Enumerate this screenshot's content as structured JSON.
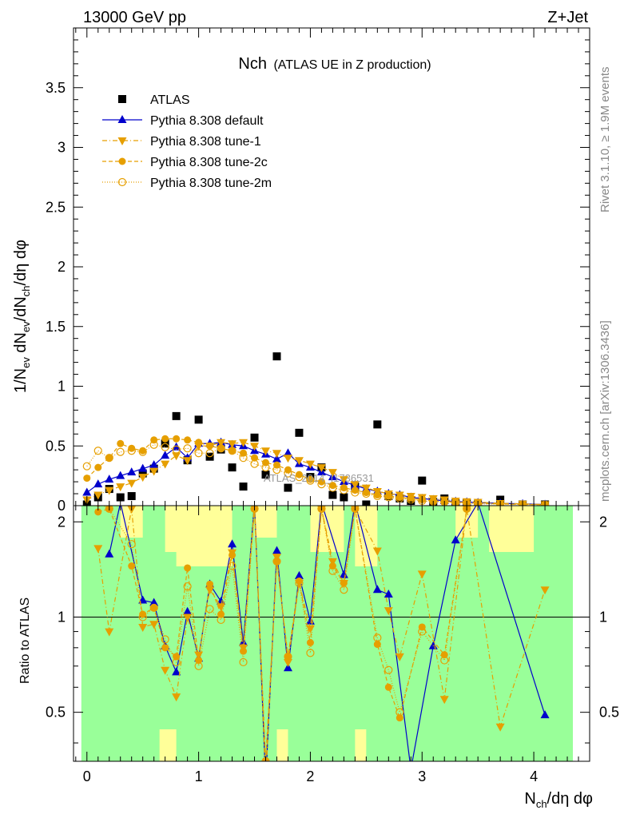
{
  "header": {
    "left": "13000 GeV pp",
    "right": "Z+Jet"
  },
  "title": {
    "main": "Nch",
    "sub": "(ATLAS UE in Z production)"
  },
  "side_labels": {
    "rivet": "Rivet 3.1.10, ≥ 1.9M events",
    "mcplots": "mcplots.cern.ch [arXiv:1306.3436]"
  },
  "watermark": "ATLAS_2014_I1736531",
  "colors": {
    "atlas": "#000000",
    "default": "#0000cc",
    "tune": "#e69f00",
    "band_inner": "#99ff99",
    "band_outer": "#ffff99"
  },
  "chart_data": [
    {
      "type": "scatter",
      "panel": "main",
      "xlabel": "N_ch/dη dφ",
      "ylabel": "1/N_ev dN_ev/dN_ch/dη dφ",
      "xlim": [
        -0.12,
        4.5
      ],
      "ylim": [
        0,
        4.0
      ],
      "yticks": [
        0,
        0.5,
        1,
        1.5,
        2,
        2.5,
        3,
        3.5
      ],
      "ytick_labels": [
        "0",
        "0.5",
        "1",
        "1.5",
        "2",
        "2.5",
        "3",
        "3.5"
      ],
      "xticks": [
        0,
        1,
        2,
        3,
        4
      ],
      "legend_position": "top-left",
      "series": [
        {
          "name": "ATLAS",
          "marker": "square",
          "x": [
            0,
            0.1,
            0.2,
            0.3,
            0.4,
            0.5,
            0.6,
            0.7,
            0.8,
            0.9,
            1.0,
            1.1,
            1.2,
            1.3,
            1.4,
            1.5,
            1.6,
            1.7,
            1.8,
            1.9,
            2.0,
            2.1,
            2.2,
            2.3,
            2.4,
            2.5,
            2.6,
            2.7,
            2.8,
            2.9,
            3.0,
            3.1,
            3.2,
            3.3,
            3.4,
            3.5,
            3.7,
            3.9,
            4.1
          ],
          "y": [
            0.01,
            0.07,
            0.14,
            0.07,
            0.08,
            0.27,
            0.31,
            0.52,
            0.75,
            0.38,
            0.72,
            0.41,
            0.47,
            0.32,
            0.16,
            0.57,
            0.26,
            1.25,
            0.15,
            0.61,
            0.24,
            0.32,
            0.09,
            0.07,
            0.16,
            0.01,
            0.68,
            0.08,
            0.06,
            0.04,
            0.21,
            0.03,
            0.06,
            0.02,
            0.02,
            0.01,
            0.05,
            0.01,
            0.01
          ]
        },
        {
          "name": "Pythia 8.308 default",
          "marker": "triangle-up",
          "line": "solid",
          "x": [
            0,
            0.1,
            0.2,
            0.3,
            0.4,
            0.5,
            0.6,
            0.7,
            0.8,
            0.9,
            1.0,
            1.1,
            1.2,
            1.3,
            1.4,
            1.5,
            1.6,
            1.7,
            1.8,
            1.9,
            2.0,
            2.1,
            2.2,
            2.3,
            2.4,
            2.5,
            2.6,
            2.7,
            2.8,
            2.9,
            3.0,
            3.1,
            3.2,
            3.3,
            3.4,
            3.5,
            3.7,
            3.9,
            4.1
          ],
          "y": [
            0.11,
            0.18,
            0.22,
            0.25,
            0.28,
            0.31,
            0.34,
            0.42,
            0.49,
            0.4,
            0.52,
            0.52,
            0.53,
            0.51,
            0.5,
            0.46,
            0.43,
            0.39,
            0.44,
            0.35,
            0.32,
            0.28,
            0.24,
            0.2,
            0.17,
            0.14,
            0.12,
            0.1,
            0.09,
            0.07,
            0.06,
            0.05,
            0.04,
            0.035,
            0.03,
            0.025,
            0.02,
            0.015,
            0.01
          ]
        },
        {
          "name": "Pythia 8.308 tune-1",
          "marker": "triangle-down",
          "line": "dash-dot",
          "x": [
            0,
            0.1,
            0.2,
            0.3,
            0.4,
            0.5,
            0.6,
            0.7,
            0.8,
            0.9,
            1.0,
            1.1,
            1.2,
            1.3,
            1.4,
            1.5,
            1.6,
            1.7,
            1.8,
            1.9,
            2.0,
            2.1,
            2.2,
            2.3,
            2.4,
            2.5,
            2.6,
            2.7,
            2.8,
            2.9,
            3.0,
            3.1,
            3.2,
            3.3,
            3.4,
            3.5,
            3.7,
            3.9,
            4.1
          ],
          "y": [
            0.05,
            0.09,
            0.13,
            0.16,
            0.19,
            0.24,
            0.29,
            0.35,
            0.42,
            0.38,
            0.5,
            0.5,
            0.53,
            0.52,
            0.53,
            0.5,
            0.46,
            0.44,
            0.4,
            0.38,
            0.35,
            0.32,
            0.28,
            0.22,
            0.18,
            0.15,
            0.12,
            0.1,
            0.09,
            0.08,
            0.07,
            0.06,
            0.05,
            0.04,
            0.035,
            0.03,
            0.02,
            0.015,
            0.01
          ]
        },
        {
          "name": "Pythia 8.308 tune-2c",
          "marker": "circle",
          "line": "dashed",
          "x": [
            0,
            0.1,
            0.2,
            0.3,
            0.4,
            0.5,
            0.6,
            0.7,
            0.8,
            0.9,
            1.0,
            1.1,
            1.2,
            1.3,
            1.4,
            1.5,
            1.6,
            1.7,
            1.8,
            1.9,
            2.0,
            2.1,
            2.2,
            2.3,
            2.4,
            2.5,
            2.6,
            2.7,
            2.8,
            2.9,
            3.0,
            3.1,
            3.2,
            3.3,
            3.4,
            3.5,
            3.7,
            3.9,
            4.1
          ],
          "y": [
            0.23,
            0.32,
            0.4,
            0.52,
            0.48,
            0.46,
            0.55,
            0.56,
            0.56,
            0.55,
            0.53,
            0.5,
            0.48,
            0.46,
            0.44,
            0.4,
            0.36,
            0.34,
            0.3,
            0.26,
            0.22,
            0.2,
            0.17,
            0.15,
            0.13,
            0.11,
            0.09,
            0.08,
            0.07,
            0.06,
            0.05,
            0.04,
            0.035,
            0.03,
            0.025,
            0.02,
            0.015,
            0.01,
            0.008
          ]
        },
        {
          "name": "Pythia 8.308 tune-2m",
          "marker": "circle-open",
          "line": "dotted",
          "x": [
            0,
            0.1,
            0.2,
            0.3,
            0.4,
            0.5,
            0.6,
            0.7,
            0.8,
            0.9,
            1.0,
            1.1,
            1.2,
            1.3,
            1.4,
            1.5,
            1.6,
            1.7,
            1.8,
            1.9,
            2.0,
            2.1,
            2.2,
            2.3,
            2.4,
            2.5,
            2.6,
            2.7,
            2.8,
            2.9,
            3.0,
            3.1,
            3.2,
            3.3,
            3.4,
            3.5,
            3.7,
            3.9,
            4.1
          ],
          "y": [
            0.33,
            0.46,
            0.4,
            0.45,
            0.46,
            0.45,
            0.51,
            0.49,
            0.47,
            0.48,
            0.44,
            0.44,
            0.48,
            0.46,
            0.4,
            0.35,
            0.32,
            0.3,
            0.27,
            0.24,
            0.21,
            0.18,
            0.15,
            0.13,
            0.11,
            0.1,
            0.08,
            0.07,
            0.06,
            0.05,
            0.04,
            0.035,
            0.03,
            0.025,
            0.02,
            0.015,
            0.012,
            0.01,
            0.008
          ]
        }
      ]
    },
    {
      "type": "scatter",
      "panel": "ratio",
      "xlabel": "N_ch/dη dφ",
      "ylabel": "Ratio to ATLAS",
      "xlim": [
        -0.12,
        4.5
      ],
      "ylim": [
        0.35,
        2.25
      ],
      "yticks": [
        0.5,
        1,
        2
      ],
      "ytick_labels": [
        "0.5",
        "1",
        "2"
      ],
      "xticks": [
        0,
        1,
        2,
        3,
        4
      ],
      "xtick_labels": [
        "0",
        "1",
        "2",
        "3",
        "4"
      ],
      "reference_line": 1,
      "series": [
        {
          "name": "Pythia 8.308 default",
          "marker": "triangle-up",
          "line": "solid",
          "x": [
            0.2,
            0.3,
            0.5,
            0.6,
            0.7,
            0.8,
            0.9,
            1.0,
            1.1,
            1.2,
            1.3,
            1.4,
            1.5,
            1.6,
            1.7,
            1.8,
            1.9,
            2.0,
            2.1,
            2.3,
            2.4,
            2.6,
            2.7,
            2.9,
            3.1,
            3.3,
            3.5,
            4.1
          ],
          "y": [
            1.58,
            2.3,
            1.13,
            1.11,
            0.81,
            0.67,
            1.04,
            0.74,
            1.27,
            1.12,
            1.7,
            0.83,
            2.3,
            0.3,
            1.62,
            0.69,
            1.35,
            0.97,
            2.3,
            1.36,
            2.3,
            1.22,
            1.18,
            0.33,
            0.81,
            1.75,
            2.3,
            0.49
          ]
        },
        {
          "name": "Pythia 8.308 tune-1",
          "marker": "triangle-down",
          "line": "dash-dot",
          "x": [
            0.1,
            0.2,
            0.4,
            0.5,
            0.6,
            0.7,
            0.8,
            0.9,
            1.0,
            1.1,
            1.2,
            1.3,
            1.4,
            1.5,
            1.6,
            1.7,
            1.8,
            1.9,
            2.0,
            2.1,
            2.2,
            2.3,
            2.4,
            2.6,
            2.7,
            2.8,
            3.0,
            3.2,
            3.4,
            3.7,
            4.1
          ],
          "y": [
            1.65,
            0.9,
            2.2,
            0.93,
            0.95,
            0.68,
            0.56,
            1.0,
            0.76,
            1.22,
            1.08,
            1.6,
            0.8,
            2.3,
            0.3,
            1.55,
            0.72,
            1.28,
            0.92,
            2.2,
            1.5,
            1.28,
            2.2,
            1.62,
            1.05,
            0.75,
            1.37,
            0.55,
            2.2,
            0.45,
            1.22
          ]
        },
        {
          "name": "Pythia 8.308 tune-2c",
          "marker": "circle",
          "line": "dashed",
          "x": [
            0.1,
            0.2,
            0.4,
            0.5,
            0.6,
            0.7,
            0.8,
            0.9,
            1.0,
            1.1,
            1.2,
            1.3,
            1.4,
            1.5,
            1.6,
            1.7,
            1.8,
            1.9,
            2.0,
            2.1,
            2.2,
            2.3,
            2.4,
            2.6,
            2.7,
            2.8,
            3.0,
            3.2,
            3.4
          ],
          "y": [
            2.15,
            2.2,
            1.45,
            1.02,
            1.07,
            0.8,
            0.75,
            1.43,
            0.73,
            1.27,
            1.02,
            1.57,
            0.78,
            2.2,
            0.35,
            1.5,
            0.75,
            1.3,
            0.83,
            2.2,
            1.45,
            1.28,
            2.2,
            0.82,
            0.6,
            0.48,
            0.93,
            0.76,
            2.2
          ]
        },
        {
          "name": "Pythia 8.308 tune-2m",
          "marker": "circle-open",
          "line": "dotted",
          "x": [
            0.1,
            0.2,
            0.4,
            0.5,
            0.6,
            0.7,
            0.8,
            0.9,
            1.0,
            1.1,
            1.2,
            1.3,
            1.4,
            1.5,
            1.6,
            1.7,
            1.8,
            1.9,
            2.0,
            2.1,
            2.2,
            2.3,
            2.4,
            2.6,
            2.7,
            2.8,
            3.0,
            3.2,
            3.4
          ],
          "y": [
            2.3,
            2.2,
            1.7,
            1.0,
            1.07,
            0.85,
            0.72,
            1.25,
            0.7,
            1.06,
            0.98,
            1.45,
            0.72,
            2.2,
            0.35,
            1.5,
            0.75,
            1.28,
            0.77,
            2.2,
            1.4,
            1.22,
            2.2,
            0.86,
            0.68,
            0.5,
            0.9,
            0.73,
            2.2
          ]
        }
      ]
    }
  ]
}
